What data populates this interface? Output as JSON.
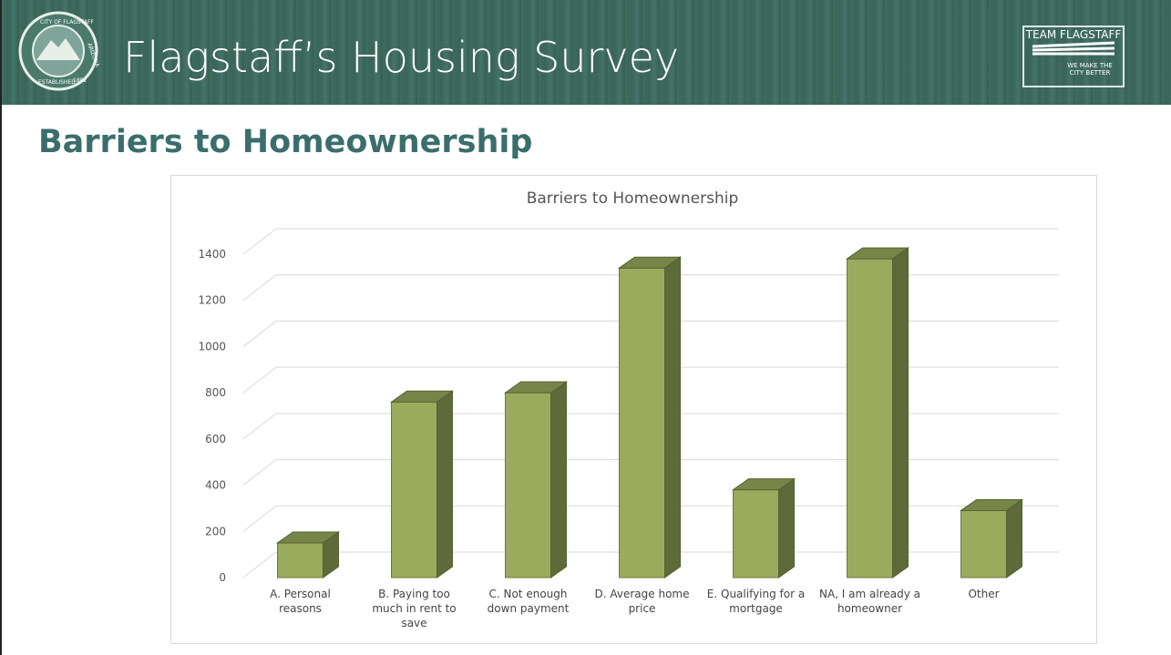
{
  "header": {
    "title": "Flagstaff’s Housing Survey",
    "seal": [
      "CITY OF FLAGSTAFF",
      "ARIZONA",
      "ESTABLISHED",
      "1882"
    ],
    "logo": {
      "name": "TEAM FLAGSTAFF",
      "tagline": "WE MAKE THE CITY BETTER"
    }
  },
  "subtitle": "Barriers to Homeownership",
  "chart_data": {
    "type": "bar3d",
    "title": "Barriers to Homeownership",
    "categories": [
      "A. Personal reasons",
      "B. Paying too much in rent to save",
      "C. Not enough down payment",
      "D. Average home price",
      "E. Qualifying for a mortgage",
      "NA, I am already a homeowner",
      "Other"
    ],
    "values": [
      150,
      760,
      800,
      1340,
      380,
      1380,
      290
    ],
    "color": "#9aab5e",
    "ylim": [
      0,
      1400
    ],
    "yticks": [
      0,
      200,
      400,
      600,
      800,
      1000,
      1200,
      1400
    ],
    "grid": true
  }
}
